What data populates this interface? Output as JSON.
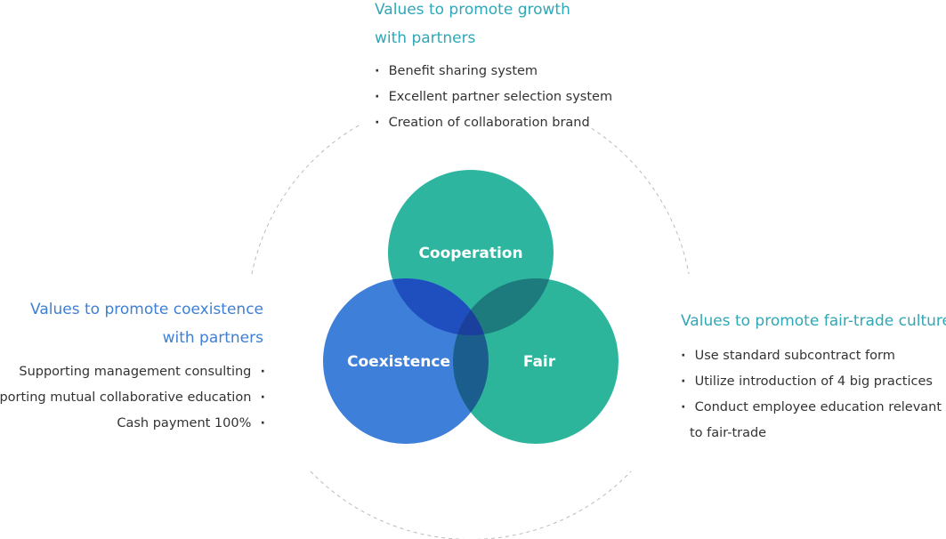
{
  "circles": {
    "cooperation": {
      "label": "Cooperation",
      "color": "#2db5a0"
    },
    "coexistence": {
      "label": "Coexistence",
      "color": "#3d7fd9"
    },
    "fair": {
      "label": "Fair",
      "color": "#2db59c"
    },
    "overlap_colors": {
      "coop_coex": "#1f4fbf",
      "coop_fair": "#1d7a7d",
      "coex_fair": "#1b5d8c",
      "center": "#1a3f9c"
    }
  },
  "top": {
    "heading_line1": "Values to promote growth",
    "heading_line2": "with partners",
    "items": [
      "Benefit sharing system",
      "Excellent partner selection system",
      "Creation of collaboration brand"
    ]
  },
  "left": {
    "heading_line1": "Values to promote coexistence",
    "heading_line2": "with partners",
    "items": [
      "Supporting management consulting",
      "Supporting mutual collaborative education",
      "Cash payment 100%"
    ]
  },
  "right": {
    "heading": "Values to promote fair-trade culture",
    "items": [
      "Use standard subcontract form",
      "Utilize introduction of 4 big practices",
      "Conduct employee education relevant"
    ],
    "item3_cont": "to fair-trade"
  }
}
